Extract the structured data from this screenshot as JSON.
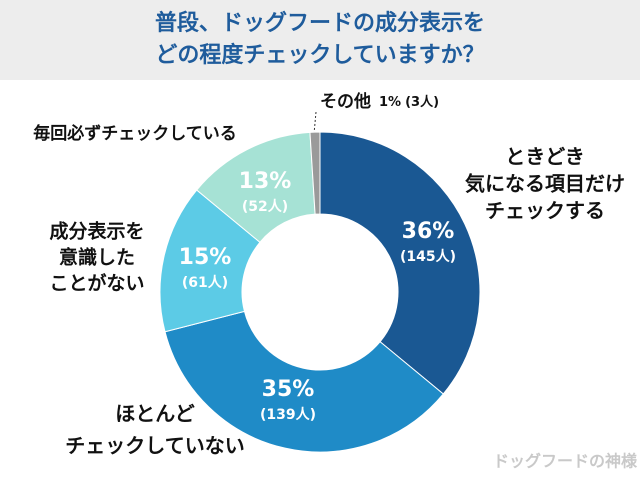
{
  "chart_data": {
    "type": "donut",
    "title": [
      "普段、ドッグフードの成分表示を",
      "どの程度チェックしていますか？"
    ],
    "categories": [
      [
        "ときどき",
        "気になる項目だけ",
        "チェックする"
      ],
      [
        "ほとんど",
        "チェックしていない"
      ],
      [
        "成分表示を",
        "意識した",
        "ことがない"
      ],
      [
        "毎回必ずチェックしている"
      ],
      [
        "その他"
      ]
    ],
    "values": [
      36,
      35,
      15,
      13,
      1
    ],
    "value_labels": [
      "36%",
      "35%",
      "15%",
      "13%",
      "1%"
    ],
    "count_labels": [
      "(145人)",
      "(139人)",
      "(61人)",
      "(52人)",
      "(3人)"
    ],
    "colors": [
      "#1a5893",
      "#1f8bc7",
      "#5ccbe6",
      "#a6e2d5",
      "#9a9a9a"
    ],
    "watermark": "ドッグフードの神様"
  }
}
